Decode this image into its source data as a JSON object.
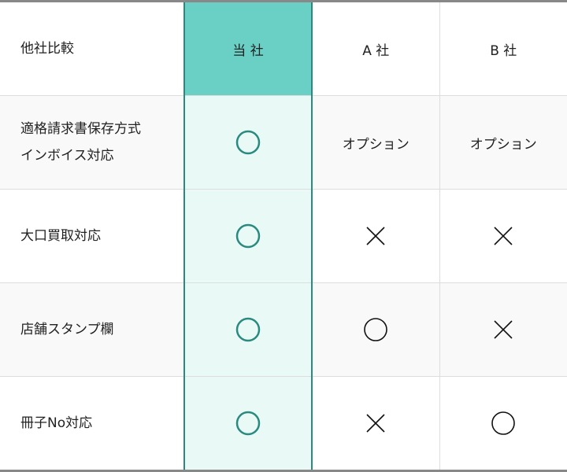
{
  "accent_color": "#2a8a80",
  "header": {
    "label": "他社比較",
    "ours": "当 社",
    "a": "A 社",
    "b": "B 社"
  },
  "rows": [
    {
      "label_lines": [
        "適格請求書保存方式",
        "インボイス対応"
      ],
      "ours": "circle",
      "a": "オプション",
      "b": "オプション"
    },
    {
      "label_lines": [
        "大口買取対応"
      ],
      "ours": "circle",
      "a": "cross",
      "b": "cross"
    },
    {
      "label_lines": [
        "店舗スタンプ欄"
      ],
      "ours": "circle",
      "a": "circle",
      "b": "cross"
    },
    {
      "label_lines": [
        "冊子No対応"
      ],
      "ours": "circle",
      "a": "cross",
      "b": "circle"
    }
  ]
}
